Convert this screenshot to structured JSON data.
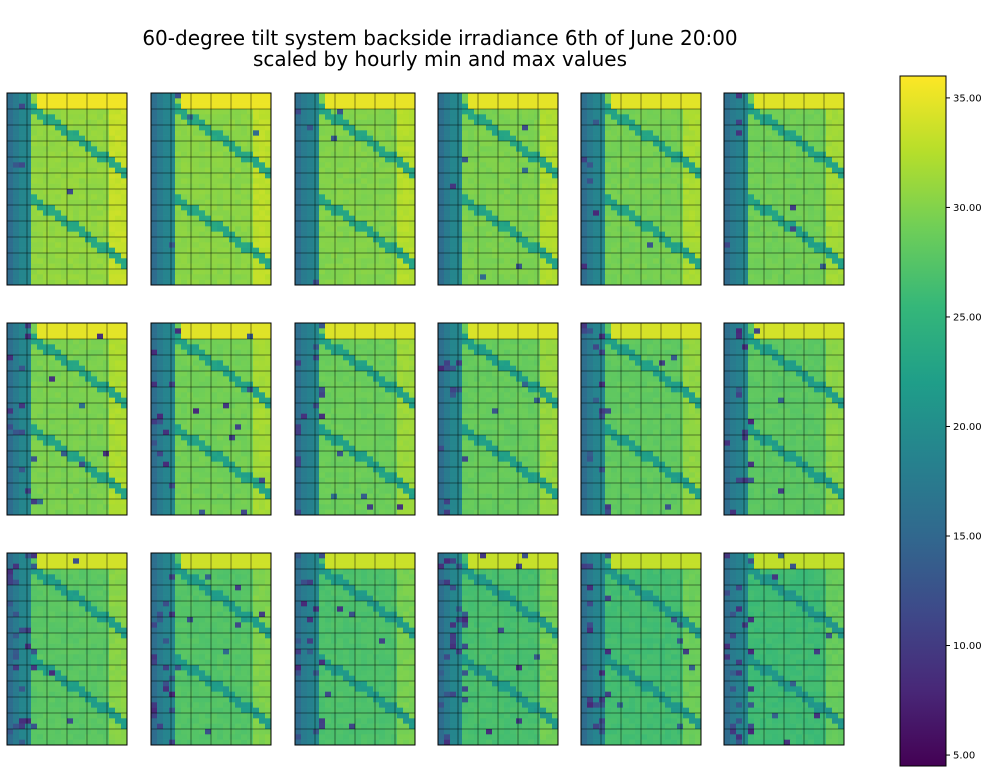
{
  "chart_data": {
    "type": "heatmap",
    "title": "60-degree tilt system backside irradiance 6th of June 20:00\nscaled by hourly min and max values",
    "title_lines": [
      "60-degree tilt system backside irradiance 6th of June 20:00",
      "scaled by hourly min and max values"
    ],
    "panel_layout": {
      "rows": 3,
      "cols": 6
    },
    "panel_cells": {
      "columns": 20,
      "rows": 36
    },
    "colormap": "viridis",
    "colormap_stops": [
      "#440154",
      "#482878",
      "#3e4989",
      "#31688e",
      "#26828e",
      "#1f9e89",
      "#35b779",
      "#6ece58",
      "#b5de2b",
      "#fde725"
    ],
    "colorbar": {
      "min": 4.5,
      "max": 36,
      "ticks": [
        5,
        10,
        15,
        20,
        25,
        30,
        35
      ],
      "tick_labels": [
        "5.00",
        "10.00",
        "15.00",
        "20.00",
        "25.00",
        "30.00",
        "35.00"
      ]
    },
    "value_model": {
      "left_edge_value": 16,
      "dark_stripe_value": 19,
      "base_value": 30,
      "right_band_value": 33,
      "top_band_value": 35,
      "diagonal_shadow_value": 23,
      "dropout_value": 8
    },
    "panel_gradient": {
      "row_offsets": [
        0,
        -1.2,
        -3
      ],
      "col_offsets": [
        0.8,
        0.4,
        0,
        -0.3,
        -0.6,
        -0.9
      ]
    },
    "grid_overlay": {
      "color": "#000000",
      "opacity": 0.45
    }
  }
}
